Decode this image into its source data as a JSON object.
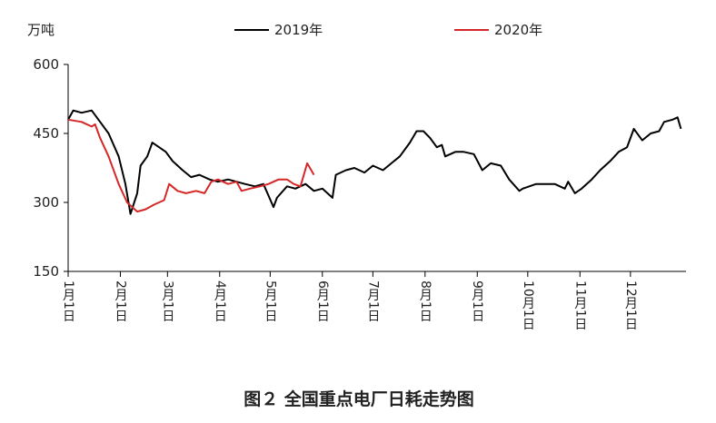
{
  "chart_data": {
    "type": "line",
    "y_label": "万吨",
    "caption": "图２ 全国重点电厂日耗走势图",
    "xlim": [
      1,
      368
    ],
    "ylim": [
      150,
      600
    ],
    "yticks": [
      150,
      300,
      450,
      600
    ],
    "xticks": [
      {
        "value": 1,
        "label": "1月1日"
      },
      {
        "value": 32,
        "label": "2月1日"
      },
      {
        "value": 60,
        "label": "3月1日"
      },
      {
        "value": 91,
        "label": "4月1日"
      },
      {
        "value": 121,
        "label": "5月1日"
      },
      {
        "value": 152,
        "label": "6月1日"
      },
      {
        "value": 182,
        "label": "7月1日"
      },
      {
        "value": 213,
        "label": "8月1日"
      },
      {
        "value": 244,
        "label": "9月1日"
      },
      {
        "value": 274,
        "label": "10月1日"
      },
      {
        "value": 305,
        "label": "11月1日"
      },
      {
        "value": 335,
        "label": "12月1日"
      }
    ],
    "series": [
      {
        "name": "2019年",
        "color": "#000000",
        "x": [
          1,
          4,
          9,
          15,
          20,
          25,
          31,
          35,
          38,
          42,
          44,
          48,
          51,
          55,
          59,
          63,
          69,
          74,
          79,
          85,
          90,
          96,
          101,
          106,
          112,
          117,
          123,
          125,
          131,
          136,
          142,
          147,
          152,
          158,
          160,
          166,
          171,
          177,
          182,
          188,
          193,
          198,
          204,
          208,
          212,
          216,
          220,
          223,
          225,
          231,
          236,
          242,
          247,
          252,
          258,
          263,
          269,
          271,
          279,
          290,
          296,
          298,
          302,
          306,
          312,
          317,
          323,
          328,
          333,
          337,
          342,
          347,
          352,
          355,
          360,
          363,
          365
        ],
        "values": [
          480,
          500,
          495,
          500,
          475,
          450,
          400,
          340,
          275,
          320,
          380,
          400,
          430,
          420,
          410,
          390,
          370,
          355,
          360,
          350,
          345,
          350,
          345,
          340,
          335,
          340,
          290,
          310,
          335,
          330,
          340,
          325,
          330,
          310,
          360,
          370,
          375,
          365,
          380,
          370,
          385,
          400,
          430,
          455,
          455,
          440,
          420,
          425,
          400,
          410,
          410,
          405,
          370,
          385,
          380,
          350,
          325,
          330,
          340,
          340,
          330,
          345,
          320,
          330,
          350,
          370,
          390,
          410,
          420,
          460,
          435,
          450,
          455,
          475,
          480,
          485,
          460
        ]
      },
      {
        "name": "2020年",
        "color": "#d62728",
        "x": [
          1,
          9,
          15,
          17,
          20,
          25,
          31,
          36,
          42,
          47,
          52,
          58,
          61,
          66,
          71,
          77,
          82,
          86,
          90,
          96,
          101,
          104,
          109,
          115,
          120,
          126,
          131,
          135,
          139,
          143,
          147
        ],
        "values": [
          480,
          475,
          465,
          470,
          440,
          400,
          340,
          300,
          280,
          285,
          295,
          305,
          340,
          325,
          320,
          325,
          320,
          345,
          350,
          340,
          345,
          325,
          330,
          335,
          340,
          350,
          350,
          340,
          335,
          385,
          360
        ]
      }
    ]
  }
}
